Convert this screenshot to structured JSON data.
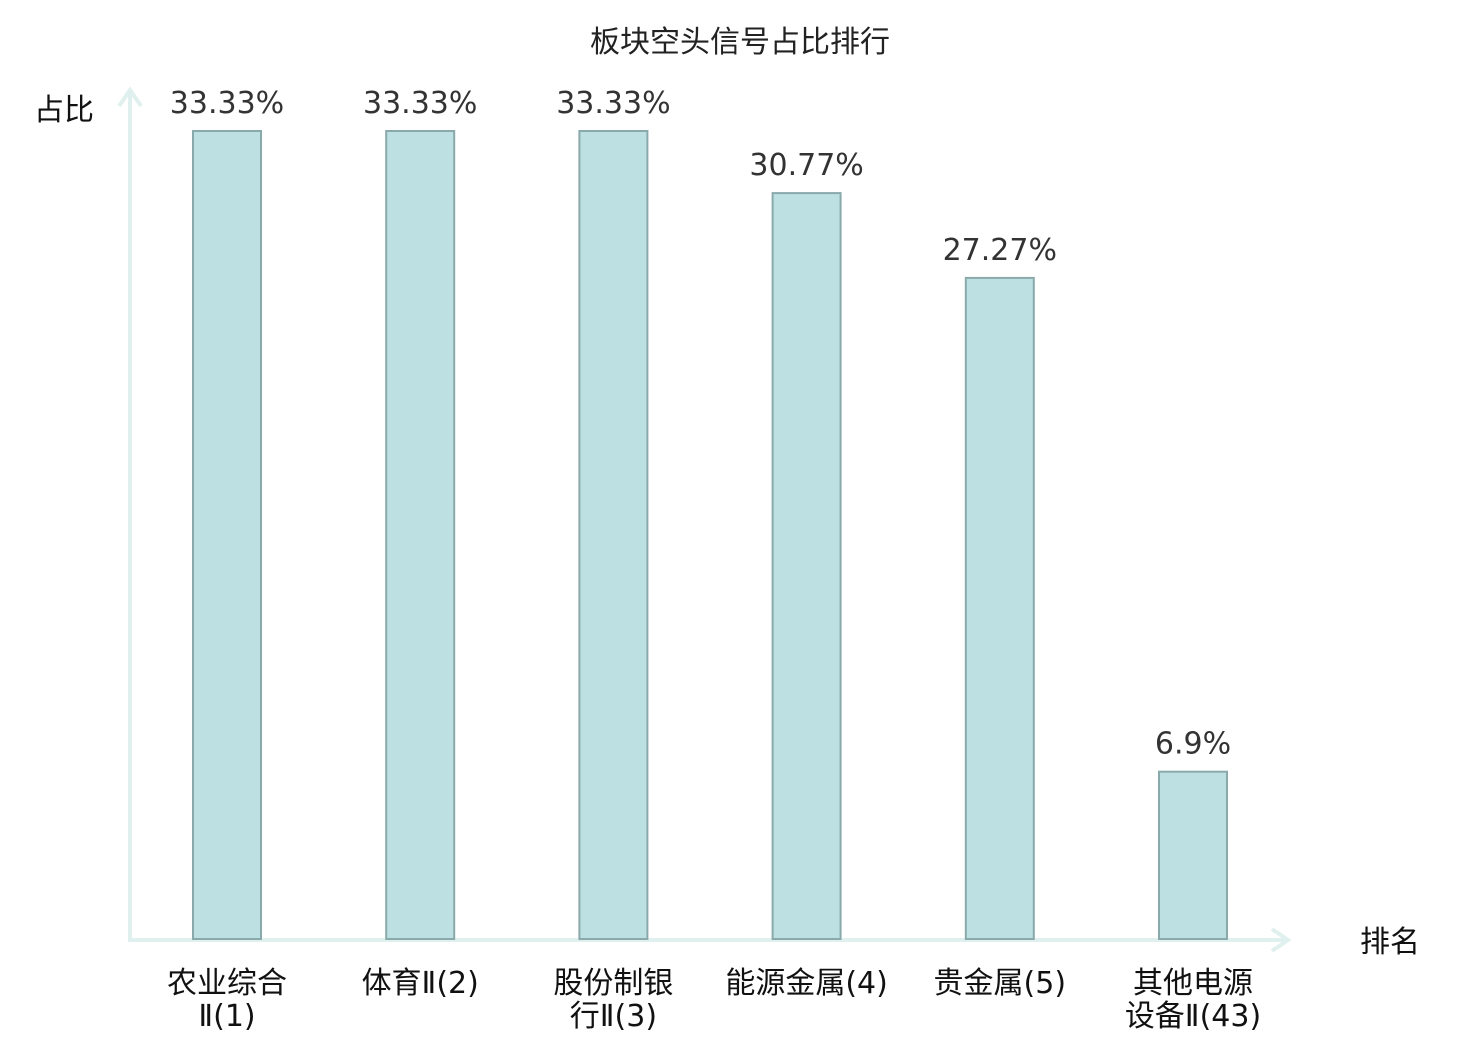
{
  "chart_data": {
    "type": "bar",
    "title": "板块空头信号占比排行",
    "ylabel": "占比",
    "xlabel": "排名",
    "categories": [
      [
        "农业综合",
        "Ⅱ(1)"
      ],
      [
        "体育Ⅱ(2)"
      ],
      [
        "股份制银",
        "行Ⅱ(3)"
      ],
      [
        "能源金属(4)"
      ],
      [
        "贵金属(5)"
      ],
      [
        "其他电源",
        "设备Ⅱ(43)"
      ]
    ],
    "values": [
      33.33,
      33.33,
      33.33,
      30.77,
      27.27,
      6.9
    ],
    "value_labels": [
      "33.33%",
      "33.33%",
      "33.33%",
      "30.77%",
      "27.27%",
      "6.9%"
    ],
    "highlight_index": 5,
    "ylim": [
      0,
      33.33
    ],
    "grid": false,
    "legend": "none"
  },
  "colors": {
    "bar_fill": "#bde0e3",
    "bar_stroke": "#8aa9ab",
    "axis": "#dff0ee",
    "highlight_text": "#e01010",
    "text": "#111111"
  }
}
